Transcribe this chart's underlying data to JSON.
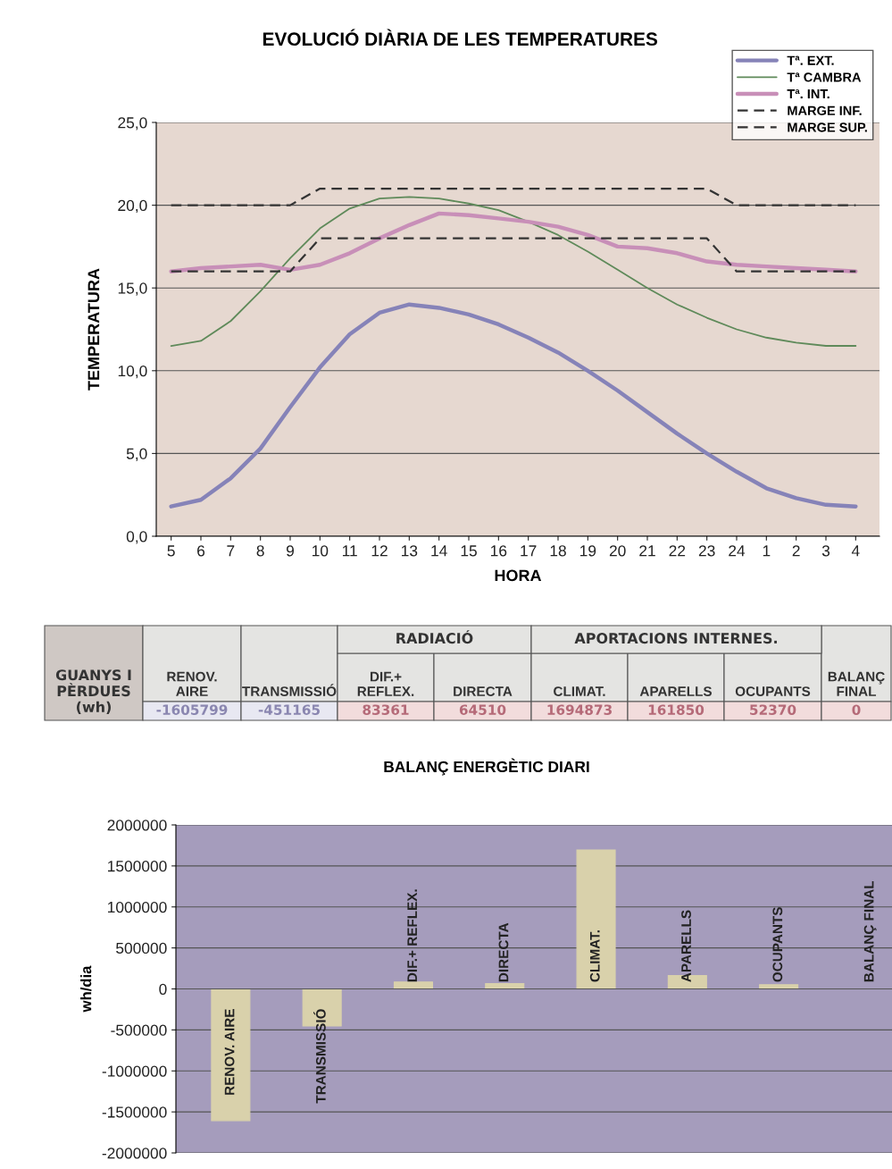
{
  "chart_data": [
    {
      "type": "line",
      "title": "EVOLUCIÓ DIÀRIA DE LES TEMPERATURES",
      "xlabel": "HORA",
      "ylabel": "TEMPERATURA",
      "categories": [
        "5",
        "6",
        "7",
        "8",
        "9",
        "10",
        "11",
        "12",
        "13",
        "14",
        "15",
        "16",
        "17",
        "18",
        "19",
        "20",
        "21",
        "22",
        "23",
        "24",
        "1",
        "2",
        "3",
        "4"
      ],
      "series": [
        {
          "name": "Tª. EXT.",
          "color": "#8683b8",
          "values": [
            1.8,
            2.2,
            3.5,
            5.3,
            7.8,
            10.2,
            12.2,
            13.5,
            14.0,
            13.8,
            13.4,
            12.8,
            12.0,
            11.1,
            10.0,
            8.8,
            7.5,
            6.2,
            5.0,
            3.9,
            2.9,
            2.3,
            1.9,
            1.8
          ]
        },
        {
          "name": "Tª CAMBRA",
          "color": "#5f8a5a",
          "values": [
            11.5,
            11.8,
            13.0,
            14.8,
            16.8,
            18.6,
            19.8,
            20.4,
            20.5,
            20.4,
            20.1,
            19.7,
            19.0,
            18.2,
            17.2,
            16.1,
            15.0,
            14.0,
            13.2,
            12.5,
            12.0,
            11.7,
            11.5,
            11.5
          ]
        },
        {
          "name": "Tª. INT.",
          "color": "#c88fb8",
          "values": [
            16.0,
            16.2,
            16.3,
            16.4,
            16.1,
            16.4,
            17.1,
            18.0,
            18.8,
            19.5,
            19.4,
            19.2,
            19.0,
            18.7,
            18.2,
            17.5,
            17.4,
            17.1,
            16.6,
            16.4,
            16.3,
            16.2,
            16.1,
            16.0
          ]
        },
        {
          "name": "MARGE INF.",
          "color": "#333333",
          "line_style": "dashed",
          "values": [
            16,
            16,
            16,
            16,
            16,
            18,
            18,
            18,
            18,
            18,
            18,
            18,
            18,
            18,
            18,
            18,
            18,
            18,
            18,
            16,
            16,
            16,
            16,
            16
          ]
        },
        {
          "name": "MARGE SUP.",
          "color": "#333333",
          "line_style": "dashed",
          "values": [
            20,
            20,
            20,
            20,
            20,
            21,
            21,
            21,
            21,
            21,
            21,
            21,
            21,
            21,
            21,
            21,
            21,
            21,
            21,
            20,
            20,
            20,
            20,
            20
          ]
        }
      ],
      "ylim": [
        0,
        25
      ],
      "yticks": [
        {
          "value": 0,
          "label": "0,0"
        },
        {
          "value": 5,
          "label": "5,0"
        },
        {
          "value": 10,
          "label": "10,0"
        },
        {
          "value": 15,
          "label": "15,0"
        },
        {
          "value": 20,
          "label": "20,0"
        },
        {
          "value": 25,
          "label": "25,0"
        }
      ],
      "grid": "y",
      "legend": "top right",
      "marker": "none"
    },
    {
      "type": "bar",
      "title": "BALANÇ ENERGÈTIC DIARI",
      "ylabel": "wh/dia",
      "categories": [
        "RENOV. AIRE",
        "TRANSMISSIÓ",
        "DIF.+ REFLEX.",
        "DIRECTA",
        "CLIMAT.",
        "APARELLS",
        "OCUPANTS",
        "BALANÇ FINAL"
      ],
      "values": [
        -1605799,
        -451165,
        83361,
        64510,
        1694873,
        161850,
        52370,
        0
      ],
      "color": "#d9d1ab",
      "ylim": [
        -2000000,
        2000000
      ],
      "yticks": [
        -2000000,
        -1500000,
        -1000000,
        -500000,
        0,
        500000,
        1000000,
        1500000,
        2000000
      ],
      "grid": "y",
      "data_labels": true,
      "annotations": [
        "GUANYS I\nPÈRDUES\n(wh)",
        "RADIACIÓ",
        "APORTACIONS INTERNES."
      ]
    }
  ]
}
